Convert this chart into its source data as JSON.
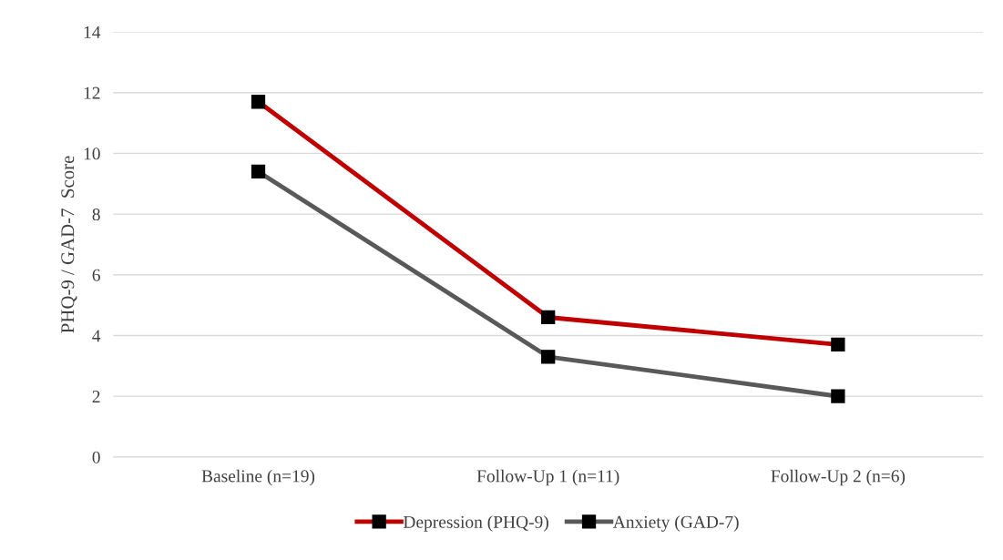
{
  "chart_data": {
    "type": "line",
    "ylabel": "PHQ-9 / GAD-7  Score",
    "categories": [
      "Baseline (n=19)",
      "Follow-Up 1 (n=11)",
      "Follow-Up 2 (n=6)"
    ],
    "series": [
      {
        "name": "Depression (PHQ-9)",
        "color": "#c00000",
        "values": [
          11.7,
          4.6,
          3.7
        ]
      },
      {
        "name": "Anxiety (GAD-7)",
        "color": "#595959",
        "values": [
          9.4,
          3.3,
          2.0
        ]
      }
    ],
    "ylim": [
      0,
      14
    ],
    "yticks": [
      0,
      2,
      4,
      6,
      8,
      10,
      12,
      14
    ],
    "grid": "y",
    "legend": "bottom",
    "marker": "square",
    "line_style": "solid"
  }
}
